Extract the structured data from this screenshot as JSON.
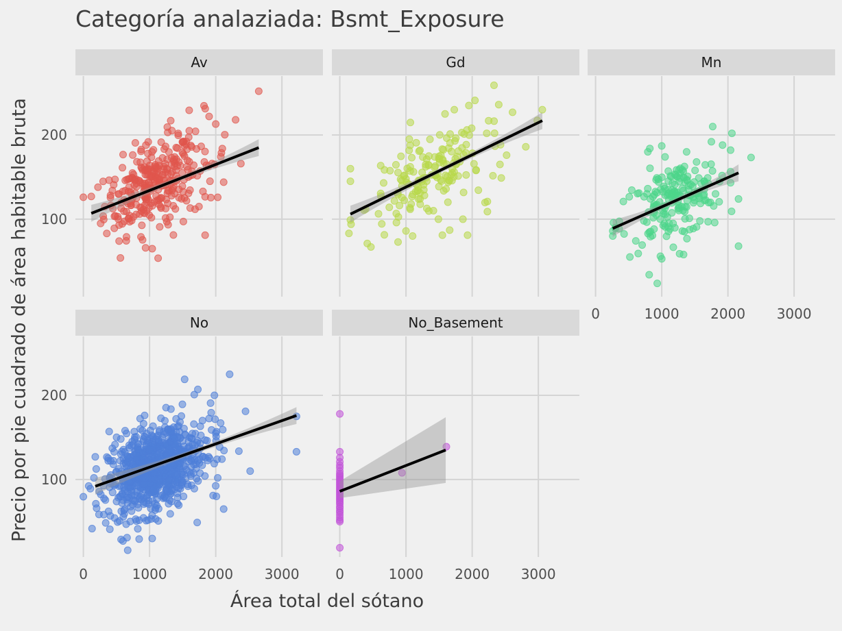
{
  "chart_data": {
    "type": "scatter",
    "title": "Categoría analaziada: Bsmt_Exposure",
    "xlabel": "Área total del sótano",
    "ylabel": "Precio por pie cuadrado de área habitable bruta",
    "xlim": [
      -120,
      3620
    ],
    "ylim": [
      8,
      270
    ],
    "x_ticks": [
      0,
      1000,
      2000,
      3000
    ],
    "y_ticks": [
      100,
      200
    ],
    "grid": true,
    "legend": "none",
    "facets": [
      {
        "name": "Av",
        "color": "#e0564c",
        "trend": {
          "x": [
            120,
            2650
          ],
          "y": [
            107,
            185
          ]
        },
        "clusters": [
          {
            "cx": 1000,
            "cy": 140,
            "sx": 340,
            "sy": 26,
            "n": 240,
            "r": 0.45
          },
          {
            "cx": 1500,
            "cy": 160,
            "sx": 360,
            "sy": 30,
            "n": 70,
            "r": 0.3
          }
        ],
        "points": [
          [
            2650,
            252
          ],
          [
            1900,
            222
          ],
          [
            1320,
            217
          ],
          [
            2300,
            218
          ],
          [
            2000,
            213
          ],
          [
            1600,
            205
          ],
          [
            2380,
            166
          ],
          [
            2120,
            144
          ],
          [
            2030,
            126
          ],
          [
            1840,
            81
          ],
          [
            940,
            66
          ],
          [
            1040,
            65
          ],
          [
            870,
            79
          ],
          [
            560,
            54
          ],
          [
            540,
            74
          ],
          [
            540,
            93
          ],
          [
            120,
            127
          ],
          [
            1260,
            97
          ],
          [
            700,
            97
          ]
        ]
      },
      {
        "name": "Gd",
        "color": "#b8d84a",
        "trend": {
          "x": [
            160,
            3060
          ],
          "y": [
            106,
            217
          ]
        },
        "clusters": [
          {
            "cx": 1250,
            "cy": 145,
            "sx": 420,
            "sy": 28,
            "n": 120,
            "r": 0.55
          },
          {
            "cx": 1900,
            "cy": 170,
            "sx": 450,
            "sy": 30,
            "n": 40,
            "r": 0.4
          }
        ],
        "points": [
          [
            2330,
            259
          ],
          [
            3060,
            230
          ],
          [
            2610,
            227
          ],
          [
            2220,
            202
          ],
          [
            1950,
            235
          ],
          [
            1730,
            230
          ],
          [
            1590,
            225
          ],
          [
            2810,
            186
          ],
          [
            2520,
            176
          ],
          [
            2420,
            165
          ],
          [
            2440,
            149
          ],
          [
            2230,
            121
          ],
          [
            2230,
            109
          ],
          [
            1930,
            81
          ],
          [
            1660,
            87
          ],
          [
            1860,
            100
          ],
          [
            1490,
            100
          ],
          [
            1100,
            80
          ],
          [
            160,
            99
          ],
          [
            170,
            94
          ],
          [
            160,
            145
          ],
          [
            160,
            160
          ],
          [
            470,
            67
          ],
          [
            1000,
            86
          ],
          [
            1550,
            81
          ],
          [
            1700,
            160
          ],
          [
            1050,
            195
          ]
        ]
      },
      {
        "name": "Mn",
        "color": "#4dd68a",
        "trend": {
          "x": [
            260,
            2160
          ],
          "y": [
            89,
            155
          ]
        },
        "clusters": [
          {
            "cx": 1150,
            "cy": 120,
            "sx": 380,
            "sy": 25,
            "n": 150,
            "r": 0.45
          },
          {
            "cx": 1400,
            "cy": 140,
            "sx": 300,
            "sy": 20,
            "n": 40,
            "r": 0.35
          }
        ],
        "points": [
          [
            1770,
            210
          ],
          [
            2060,
            202
          ],
          [
            1750,
            192
          ],
          [
            2040,
            182
          ],
          [
            1050,
            174
          ],
          [
            1000,
            187
          ],
          [
            2160,
            124
          ],
          [
            1800,
            96
          ],
          [
            1700,
            97
          ],
          [
            2160,
            68
          ],
          [
            1270,
            59
          ],
          [
            1330,
            58
          ],
          [
            980,
            56
          ],
          [
            1000,
            53
          ],
          [
            810,
            34
          ],
          [
            260,
            86
          ],
          [
            260,
            80
          ],
          [
            300,
            89
          ],
          [
            420,
            121
          ],
          [
            790,
            180
          ],
          [
            820,
            184
          ]
        ]
      },
      {
        "name": "No",
        "color": "#4f7fd8",
        "trend": {
          "x": [
            180,
            3220
          ],
          "y": [
            92,
            176
          ]
        },
        "clusters": [
          {
            "cx": 980,
            "cy": 110,
            "sx": 300,
            "sy": 26,
            "n": 620,
            "r": 0.35
          },
          {
            "cx": 1400,
            "cy": 125,
            "sx": 320,
            "sy": 25,
            "n": 200,
            "r": 0.25
          }
        ],
        "points": [
          [
            3220,
            175
          ],
          [
            3220,
            133
          ],
          [
            2210,
            225
          ],
          [
            1530,
            219
          ],
          [
            2450,
            181
          ],
          [
            1730,
            207
          ],
          [
            2520,
            110
          ],
          [
            2120,
            65
          ],
          [
            1720,
            49
          ],
          [
            670,
            16
          ],
          [
            660,
            31
          ],
          [
            1040,
            30
          ],
          [
            400,
            41
          ],
          [
            200,
            66
          ],
          [
            180,
            127
          ],
          [
            160,
            102
          ],
          [
            390,
            157
          ],
          [
            1980,
            200
          ],
          [
            2030,
            102
          ],
          [
            1960,
            81
          ],
          [
            2010,
            80
          ],
          [
            2020,
            124
          ],
          [
            2000,
            155
          ],
          [
            1800,
            170
          ]
        ]
      },
      {
        "name": "No_Basement",
        "color": "#c152d8",
        "trend": {
          "x": [
            0,
            1600
          ],
          "y": [
            86,
            135
          ]
        },
        "ci": {
          "x": [
            0,
            1600
          ],
          "lo": [
            78,
            96
          ],
          "hi": [
            98,
            174
          ]
        },
        "clusters": [],
        "points": [
          [
            0,
            178
          ],
          [
            0,
            133
          ],
          [
            0,
            126
          ],
          [
            0,
            121
          ],
          [
            0,
            117
          ],
          [
            0,
            114
          ],
          [
            0,
            110
          ],
          [
            0,
            107
          ],
          [
            0,
            105
          ],
          [
            0,
            103
          ],
          [
            0,
            101
          ],
          [
            0,
            99
          ],
          [
            0,
            97
          ],
          [
            0,
            95
          ],
          [
            0,
            93
          ],
          [
            0,
            91
          ],
          [
            0,
            89
          ],
          [
            0,
            87
          ],
          [
            0,
            85
          ],
          [
            0,
            83
          ],
          [
            0,
            81
          ],
          [
            0,
            79
          ],
          [
            0,
            77
          ],
          [
            0,
            75
          ],
          [
            0,
            73
          ],
          [
            0,
            71
          ],
          [
            0,
            68
          ],
          [
            0,
            66
          ],
          [
            0,
            63
          ],
          [
            0,
            61
          ],
          [
            0,
            58
          ],
          [
            0,
            55
          ],
          [
            0,
            52
          ],
          [
            0,
            50
          ],
          [
            0,
            19
          ],
          [
            940,
            108
          ],
          [
            1610,
            139
          ]
        ]
      }
    ]
  }
}
